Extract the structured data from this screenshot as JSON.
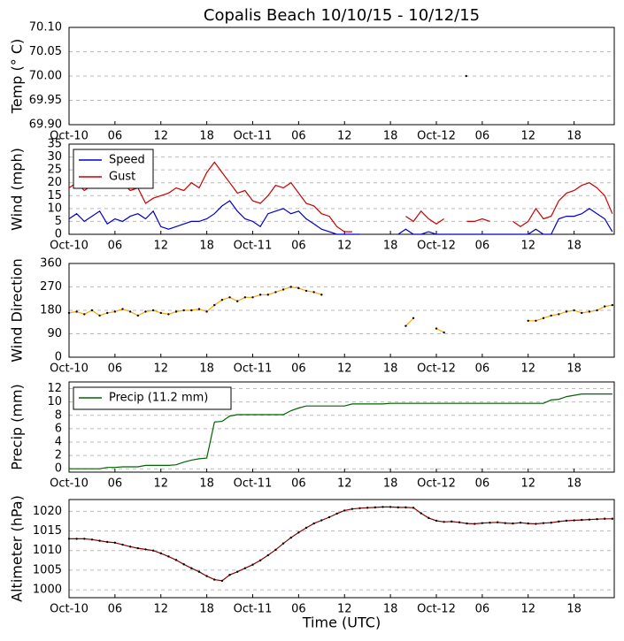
{
  "chart_data": [
    {
      "type": "scatter",
      "title": "Copalis Beach 10/10/15 - 10/12/15",
      "y_label": "Temp (° C)",
      "x": [
        51.9
      ],
      "values": [
        70.0
      ],
      "color": "#000000",
      "xlim": [
        0,
        71.25
      ],
      "xticks": [
        {
          "value": 0,
          "label": "Oct-10"
        },
        {
          "value": 6,
          "label": "06"
        },
        {
          "value": 12,
          "label": "12"
        },
        {
          "value": 18,
          "label": "18"
        },
        {
          "value": 24,
          "label": "Oct-11"
        },
        {
          "value": 30,
          "label": "06"
        },
        {
          "value": 36,
          "label": "12"
        },
        {
          "value": 42,
          "label": "18"
        },
        {
          "value": 48,
          "label": "Oct-12"
        },
        {
          "value": 54,
          "label": "06"
        },
        {
          "value": 60,
          "label": "12"
        },
        {
          "value": 66,
          "label": "18"
        }
      ],
      "ylim": [
        69.9,
        70.1
      ],
      "yticks": [
        {
          "value": 69.9,
          "label": "69.90"
        },
        {
          "value": 69.95,
          "label": "69.95"
        },
        {
          "value": 70.0,
          "label": "70.00"
        },
        {
          "value": 70.05,
          "label": "70.05"
        },
        {
          "value": 70.1,
          "label": "70.10"
        }
      ],
      "grid": true
    },
    {
      "type": "line",
      "y_label": "Wind (mph)",
      "legend": "upper left",
      "x": [
        0,
        1,
        2,
        3,
        4,
        5,
        6,
        7,
        8,
        9,
        10,
        11,
        12,
        13,
        14,
        15,
        16,
        17,
        18,
        19,
        20,
        21,
        22,
        23,
        24,
        25,
        26,
        27,
        28,
        29,
        30,
        31,
        32,
        33,
        34,
        35,
        36,
        37,
        38,
        39,
        40,
        41,
        42,
        43,
        44,
        45,
        46,
        47,
        48,
        49,
        50,
        51,
        52,
        53,
        54,
        55,
        56,
        57,
        58,
        59,
        60,
        61,
        62,
        63,
        64,
        65,
        66,
        67,
        68,
        69,
        70,
        71
      ],
      "series": [
        {
          "name": "Speed",
          "color": "#0000cc",
          "values": [
            6,
            8,
            5,
            7,
            9,
            4,
            6,
            5,
            7,
            8,
            6,
            9,
            3,
            2,
            3,
            4,
            5,
            5,
            6,
            8,
            11,
            13,
            9,
            6,
            5,
            3,
            8,
            9,
            10,
            8,
            9,
            6,
            4,
            2,
            1,
            0,
            0,
            0,
            0,
            null,
            0,
            null,
            null,
            0,
            2,
            0,
            0,
            1,
            0,
            0,
            0,
            0,
            0,
            0,
            0,
            0,
            0,
            0,
            0,
            0,
            0,
            2,
            0,
            0,
            6,
            7,
            7,
            8,
            10,
            8,
            6,
            1
          ]
        },
        {
          "name": "Gust",
          "color": "#cc0000",
          "values": [
            18,
            20,
            17,
            19,
            18,
            19,
            18,
            20,
            17,
            18,
            12,
            14,
            15,
            16,
            18,
            17,
            20,
            18,
            24,
            28,
            24,
            20,
            16,
            17,
            13,
            12,
            15,
            19,
            18,
            20,
            16,
            12,
            11,
            8,
            7,
            3,
            1,
            1,
            null,
            null,
            null,
            null,
            null,
            null,
            7,
            5,
            9,
            6,
            4,
            6,
            null,
            null,
            5,
            5,
            6,
            5,
            null,
            null,
            5,
            3,
            5,
            10,
            6,
            7,
            13,
            16,
            17,
            19,
            20,
            18,
            15,
            8
          ]
        }
      ],
      "xlim": [
        0,
        71.25
      ],
      "xticks": [
        {
          "value": 0,
          "label": "Oct-10"
        },
        {
          "value": 6,
          "label": "06"
        },
        {
          "value": 12,
          "label": "12"
        },
        {
          "value": 18,
          "label": "18"
        },
        {
          "value": 24,
          "label": "Oct-11"
        },
        {
          "value": 30,
          "label": "06"
        },
        {
          "value": 36,
          "label": "12"
        },
        {
          "value": 42,
          "label": "18"
        },
        {
          "value": 48,
          "label": "Oct-12"
        },
        {
          "value": 54,
          "label": "06"
        },
        {
          "value": 60,
          "label": "12"
        },
        {
          "value": 66,
          "label": "18"
        }
      ],
      "ylim": [
        0,
        35
      ],
      "yticks": [
        0,
        5,
        10,
        15,
        20,
        25,
        30,
        35
      ],
      "grid": true
    },
    {
      "type": "line",
      "y_label": "Wind Direction",
      "color": "#ffa500",
      "x": [
        0,
        1,
        2,
        3,
        4,
        5,
        6,
        7,
        8,
        9,
        10,
        11,
        12,
        13,
        14,
        15,
        16,
        17,
        18,
        19,
        20,
        21,
        22,
        23,
        24,
        25,
        26,
        27,
        28,
        29,
        30,
        31,
        32,
        33,
        34,
        35,
        36,
        37,
        38,
        39,
        40,
        41,
        42,
        43,
        44,
        45,
        46,
        47,
        48,
        49,
        50,
        51,
        52,
        53,
        54,
        55,
        56,
        57,
        58,
        59,
        60,
        61,
        62,
        63,
        64,
        65,
        66,
        67,
        68,
        69,
        70,
        71
      ],
      "values": [
        170,
        175,
        165,
        180,
        160,
        170,
        175,
        185,
        175,
        160,
        175,
        180,
        170,
        165,
        175,
        180,
        180,
        185,
        175,
        200,
        220,
        230,
        215,
        230,
        230,
        240,
        240,
        250,
        260,
        270,
        265,
        255,
        250,
        240,
        null,
        null,
        null,
        null,
        null,
        null,
        null,
        null,
        null,
        null,
        120,
        150,
        null,
        null,
        110,
        95,
        null,
        null,
        null,
        null,
        null,
        null,
        null,
        null,
        null,
        null,
        140,
        140,
        150,
        160,
        165,
        175,
        180,
        170,
        175,
        180,
        195,
        200
      ],
      "xlim": [
        0,
        71.25
      ],
      "xticks": [
        {
          "value": 0,
          "label": "Oct-10"
        },
        {
          "value": 6,
          "label": "06"
        },
        {
          "value": 12,
          "label": "12"
        },
        {
          "value": 18,
          "label": "18"
        },
        {
          "value": 24,
          "label": "Oct-11"
        },
        {
          "value": 30,
          "label": "06"
        },
        {
          "value": 36,
          "label": "12"
        },
        {
          "value": 42,
          "label": "18"
        },
        {
          "value": 48,
          "label": "Oct-12"
        },
        {
          "value": 54,
          "label": "06"
        },
        {
          "value": 60,
          "label": "12"
        },
        {
          "value": 66,
          "label": "18"
        }
      ],
      "ylim": [
        0,
        360
      ],
      "yticks": [
        0,
        90,
        180,
        270,
        360
      ],
      "grid": true
    },
    {
      "type": "line",
      "y_label": "Precip (mm)",
      "legend": "upper left",
      "x": [
        0,
        1,
        2,
        3,
        4,
        5,
        6,
        7,
        8,
        9,
        10,
        11,
        12,
        13,
        14,
        15,
        16,
        17,
        18,
        19,
        20,
        21,
        22,
        23,
        24,
        25,
        26,
        27,
        28,
        29,
        30,
        31,
        32,
        33,
        34,
        35,
        36,
        37,
        38,
        39,
        40,
        41,
        42,
        43,
        44,
        45,
        46,
        47,
        48,
        49,
        50,
        51,
        52,
        53,
        54,
        55,
        56,
        57,
        58,
        59,
        60,
        61,
        62,
        63,
        64,
        65,
        66,
        67,
        68,
        69,
        70,
        71
      ],
      "series": [
        {
          "name": "Precip (11.2 mm)",
          "color": "#006400",
          "values": [
            0,
            0,
            0,
            0,
            0,
            0.2,
            0.2,
            0.3,
            0.3,
            0.3,
            0.5,
            0.5,
            0.5,
            0.5,
            0.6,
            1.0,
            1.3,
            1.5,
            1.6,
            7.0,
            7.1,
            7.9,
            8.1,
            8.1,
            8.1,
            8.1,
            8.1,
            8.1,
            8.1,
            8.7,
            9.1,
            9.4,
            9.4,
            9.4,
            9.4,
            9.4,
            9.4,
            9.7,
            9.7,
            9.7,
            9.7,
            9.7,
            9.8,
            9.8,
            9.8,
            9.8,
            9.8,
            9.8,
            9.8,
            9.8,
            9.8,
            9.8,
            9.8,
            9.8,
            9.8,
            9.8,
            9.8,
            9.8,
            9.8,
            9.8,
            9.8,
            9.8,
            9.8,
            10.3,
            10.4,
            10.8,
            11.0,
            11.2,
            11.2,
            11.2,
            11.2,
            11.2
          ]
        }
      ],
      "xlim": [
        0,
        71.25
      ],
      "xticks": [
        {
          "value": 0,
          "label": "Oct-10"
        },
        {
          "value": 6,
          "label": "06"
        },
        {
          "value": 12,
          "label": "12"
        },
        {
          "value": 18,
          "label": "18"
        },
        {
          "value": 24,
          "label": "Oct-11"
        },
        {
          "value": 30,
          "label": "06"
        },
        {
          "value": 36,
          "label": "12"
        },
        {
          "value": 42,
          "label": "18"
        },
        {
          "value": 48,
          "label": "Oct-12"
        },
        {
          "value": 54,
          "label": "06"
        },
        {
          "value": 60,
          "label": "12"
        },
        {
          "value": 66,
          "label": "18"
        }
      ],
      "ylim": [
        -0.5,
        13
      ],
      "yticks": [
        0,
        2,
        4,
        6,
        8,
        10,
        12
      ],
      "grid": true
    },
    {
      "type": "line",
      "y_label": "Altimeter (hPa)",
      "x_label": "Time (UTC)",
      "color": "#8b0000",
      "x": [
        0,
        1,
        2,
        3,
        4,
        5,
        6,
        7,
        8,
        9,
        10,
        11,
        12,
        13,
        14,
        15,
        16,
        17,
        18,
        19,
        20,
        21,
        22,
        23,
        24,
        25,
        26,
        27,
        28,
        29,
        30,
        31,
        32,
        33,
        34,
        35,
        36,
        37,
        38,
        39,
        40,
        41,
        42,
        43,
        44,
        45,
        46,
        47,
        48,
        49,
        50,
        51,
        52,
        53,
        54,
        55,
        56,
        57,
        58,
        59,
        60,
        61,
        62,
        63,
        64,
        65,
        66,
        67,
        68,
        69,
        70,
        71
      ],
      "values": [
        1013,
        1013,
        1013,
        1012.8,
        1012.5,
        1012.2,
        1012,
        1011.5,
        1011,
        1010.6,
        1010.3,
        1010,
        1009.3,
        1008.5,
        1007.6,
        1006.5,
        1005.5,
        1004.6,
        1003.5,
        1002.6,
        1002.3,
        1003.8,
        1004.6,
        1005.5,
        1006.4,
        1007.5,
        1008.8,
        1010.2,
        1011.8,
        1013.3,
        1014.6,
        1015.8,
        1016.9,
        1017.7,
        1018.5,
        1019.4,
        1020.2,
        1020.6,
        1020.8,
        1020.9,
        1021.0,
        1021.1,
        1021.1,
        1021.0,
        1021.0,
        1020.9,
        1019.5,
        1018.3,
        1017.6,
        1017.3,
        1017.4,
        1017.2,
        1016.9,
        1016.8,
        1017.0,
        1017.1,
        1017.2,
        1017.0,
        1016.9,
        1017.1,
        1016.9,
        1016.8,
        1017.0,
        1017.1,
        1017.4,
        1017.6,
        1017.7,
        1017.8,
        1017.9,
        1018.0,
        1018.1,
        1018.1
      ],
      "xlim": [
        0,
        71.25
      ],
      "xticks": [
        {
          "value": 0,
          "label": "Oct-10"
        },
        {
          "value": 6,
          "label": "06"
        },
        {
          "value": 12,
          "label": "12"
        },
        {
          "value": 18,
          "label": "18"
        },
        {
          "value": 24,
          "label": "Oct-11"
        },
        {
          "value": 30,
          "label": "06"
        },
        {
          "value": 36,
          "label": "12"
        },
        {
          "value": 42,
          "label": "18"
        },
        {
          "value": 48,
          "label": "Oct-12"
        },
        {
          "value": 54,
          "label": "06"
        },
        {
          "value": 60,
          "label": "12"
        },
        {
          "value": 66,
          "label": "18"
        }
      ],
      "ylim": [
        998,
        1023
      ],
      "yticks": [
        1000,
        1005,
        1010,
        1015,
        1020
      ],
      "grid": true
    }
  ]
}
